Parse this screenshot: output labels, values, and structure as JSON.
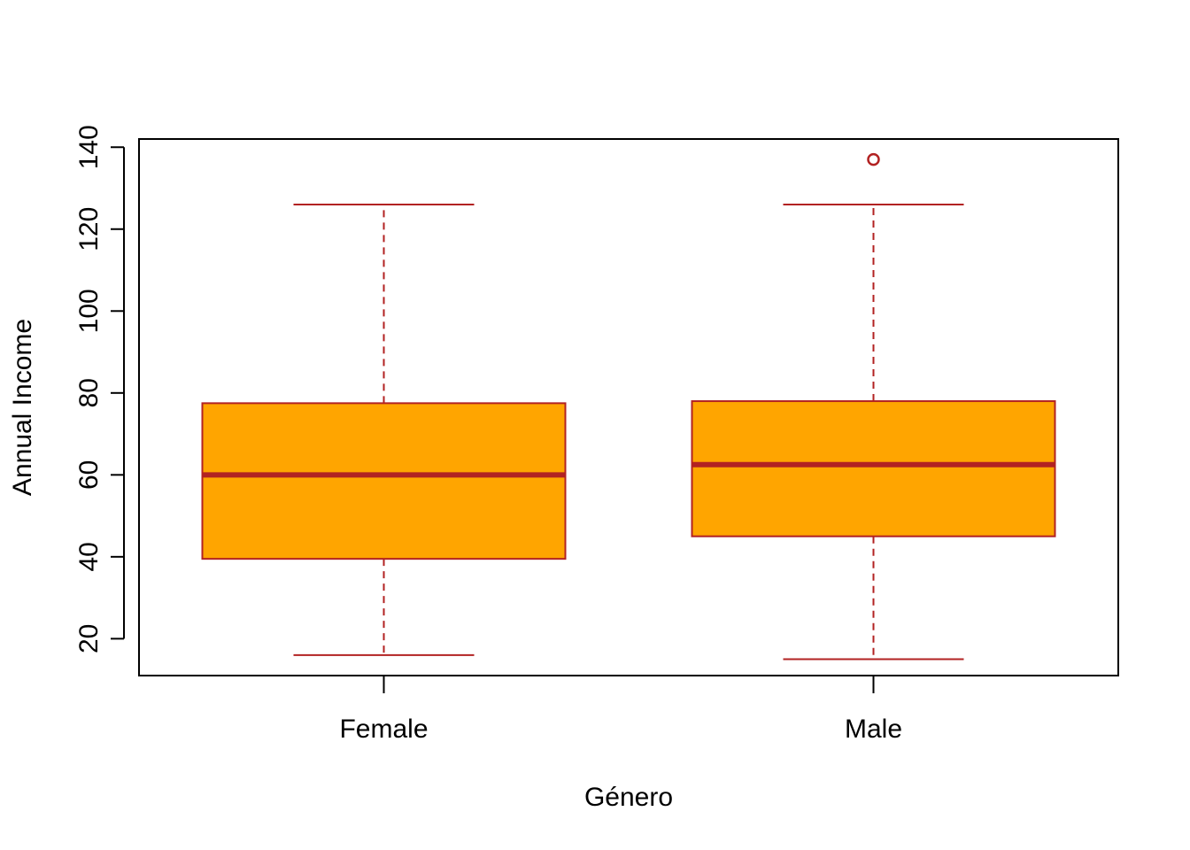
{
  "chart_data": {
    "type": "boxplot",
    "xlabel": "Género",
    "ylabel": "Annual Income",
    "ylim": [
      11,
      142
    ],
    "yticks": [
      20,
      40,
      60,
      80,
      100,
      120,
      140
    ],
    "categories": [
      "Female",
      "Male"
    ],
    "boxes": [
      {
        "name": "Female",
        "whisker_low": 16,
        "q1": 39.5,
        "median": 60,
        "q3": 77.5,
        "whisker_high": 126,
        "outliers": []
      },
      {
        "name": "Male",
        "whisker_low": 15,
        "q1": 45,
        "median": 62.5,
        "q3": 78,
        "whisker_high": 126,
        "outliers": [
          137
        ]
      }
    ],
    "colors": {
      "box_fill": "#FFA500",
      "border": "#B22222",
      "axis": "#000000"
    },
    "grid": false,
    "legend": "none"
  }
}
